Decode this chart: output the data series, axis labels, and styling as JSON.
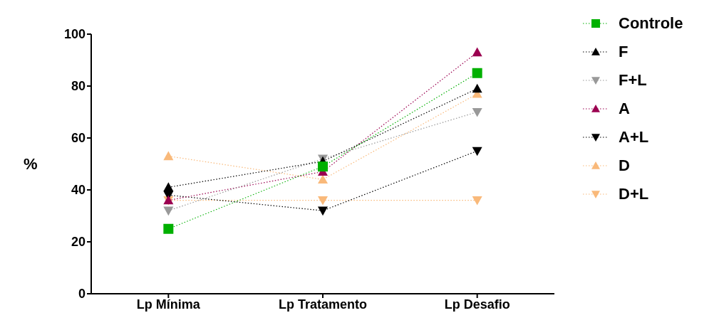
{
  "chart_data": {
    "type": "line",
    "ylabel": "%",
    "categories": [
      "Lp Mínima",
      "Lp Tratamento",
      "Lp Desafio"
    ],
    "ylim": [
      0,
      100
    ],
    "yticks": [
      0,
      20,
      40,
      60,
      80,
      100
    ],
    "grid": false,
    "legend": "right",
    "line_style": "dotted",
    "series": [
      {
        "name": "Controle",
        "color": "#00b000",
        "marker": "square",
        "values": [
          25,
          49,
          85
        ]
      },
      {
        "name": "F",
        "color": "#000000",
        "marker": "triangle",
        "values": [
          41,
          51,
          79
        ]
      },
      {
        "name": "F+L",
        "color": "#999999",
        "marker": "triangle-down",
        "values": [
          32,
          52,
          70
        ]
      },
      {
        "name": "A",
        "color": "#9b0050",
        "marker": "triangle",
        "values": [
          36,
          47,
          93
        ]
      },
      {
        "name": "A+L",
        "color": "#000000",
        "marker": "triangle-down",
        "values": [
          38,
          32,
          55
        ]
      },
      {
        "name": "D",
        "color": "#f9b97a",
        "marker": "triangle",
        "values": [
          53,
          44,
          77
        ]
      },
      {
        "name": "D+L",
        "color": "#f9b97a",
        "marker": "triangle-down",
        "values": [
          36,
          36,
          36
        ]
      }
    ]
  }
}
